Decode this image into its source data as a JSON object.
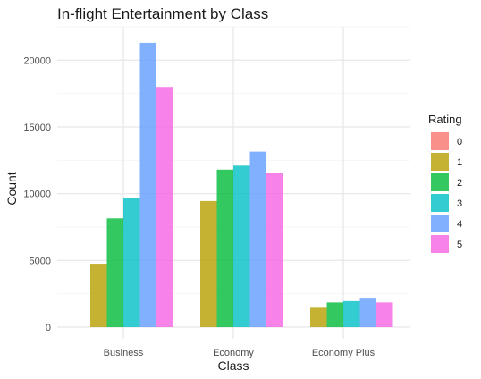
{
  "chart_data": {
    "type": "bar",
    "title": "In-flight Entertainment by Class",
    "xlabel": "Class",
    "ylabel": "Count",
    "categories": [
      "Business",
      "Economy",
      "Economy Plus"
    ],
    "ylim": [
      0,
      22500
    ],
    "yticks": [
      0,
      5000,
      10000,
      15000,
      20000
    ],
    "ytick_labels": [
      "0",
      "5000",
      "10000",
      "15000",
      "20000"
    ],
    "grid": true,
    "legend": {
      "title": "Rating",
      "position": "right"
    },
    "series": [
      {
        "name": "0",
        "color": "#F8766D",
        "values": [
          0,
          0,
          0
        ]
      },
      {
        "name": "1",
        "color": "#B79F00",
        "values": [
          4750,
          9450,
          1450
        ]
      },
      {
        "name": "2",
        "color": "#00BA38",
        "values": [
          8150,
          11800,
          1850
        ]
      },
      {
        "name": "3",
        "color": "#00BFC4",
        "values": [
          9700,
          12100,
          1950
        ]
      },
      {
        "name": "4",
        "color": "#619CFF",
        "values": [
          21300,
          13150,
          2200
        ]
      },
      {
        "name": "5",
        "color": "#F564E3",
        "values": [
          18000,
          11550,
          1850
        ]
      }
    ]
  }
}
